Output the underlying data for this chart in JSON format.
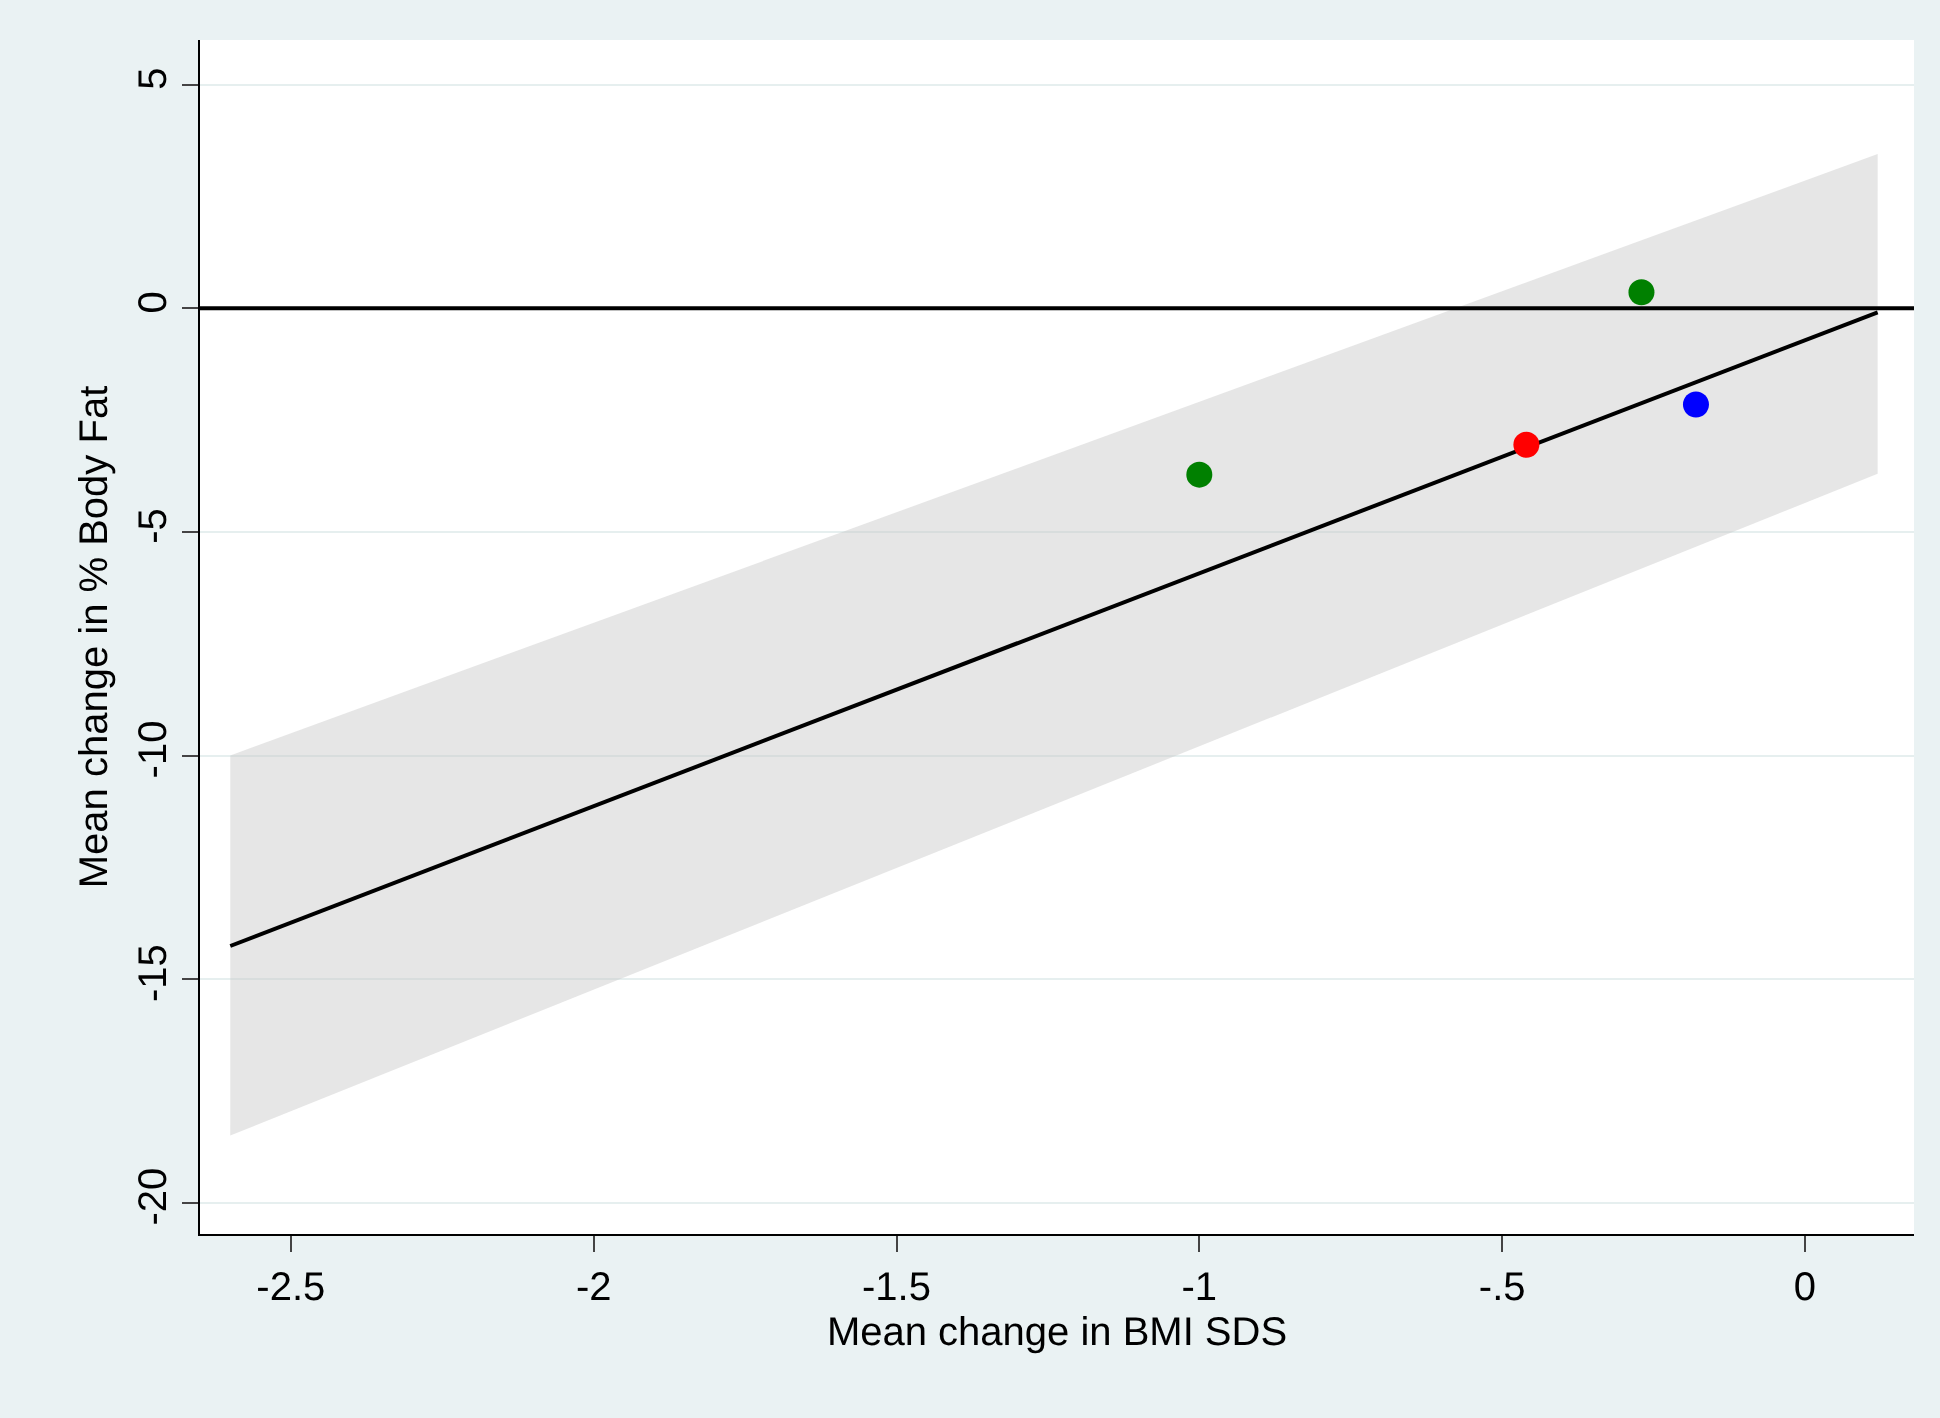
{
  "chart_data": {
    "type": "scatter",
    "xlabel": "Mean change in BMI SDS",
    "ylabel": "Mean change in % Body Fat",
    "xlim": [
      -2.65,
      0.18
    ],
    "ylim": [
      -20.7,
      6.0
    ],
    "xticks": [
      {
        "value": -2.5,
        "label": "-2.5"
      },
      {
        "value": -2,
        "label": "-2"
      },
      {
        "value": -1.5,
        "label": "-1.5"
      },
      {
        "value": -1,
        "label": "-1"
      },
      {
        "value": -0.5,
        "label": "-.5"
      },
      0
    ],
    "yticks": [
      -20,
      -15,
      -10,
      -5,
      0,
      5
    ],
    "grid": "y",
    "marker": "circle",
    "ref_lines": [
      {
        "axis": "y",
        "value": 0,
        "color": "#000000"
      }
    ],
    "series": [
      {
        "type": "line",
        "color": "#000000",
        "x": [
          -2.6,
          0.12
        ],
        "values": [
          -14.26,
          -0.09
        ],
        "lower": [
          -18.5,
          -3.7
        ],
        "upper": [
          -10.0,
          3.45
        ],
        "marker": "none"
      },
      {
        "x": [
          -1.0,
          -0.27,
          -0.46,
          -0.18
        ],
        "values": [
          -3.72,
          0.36,
          -3.05,
          -2.15
        ],
        "colors": [
          "#008000",
          "#008000",
          "#ff0000",
          "#0000ff"
        ]
      }
    ]
  }
}
